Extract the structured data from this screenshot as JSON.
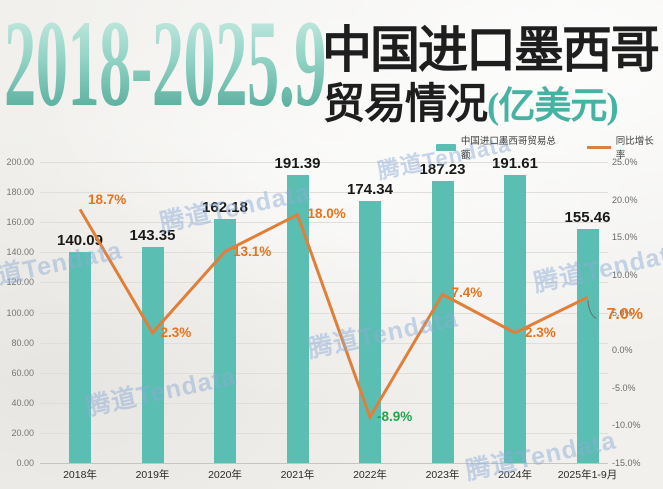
{
  "header": {
    "year_range": "2018-2025.9",
    "title_main": "中国进口墨西哥",
    "title_sub": "贸易情况",
    "title_unit": "(亿美元)"
  },
  "watermark": {
    "text": "腾道Tendata"
  },
  "colors": {
    "bar": "#5abeb2",
    "line": "#e07f39",
    "pct_label": "#e8731c",
    "pct_label_negative": "#1ea750",
    "accent_teal": "#45b3a2",
    "title_teal_dark": "#49a392",
    "watermark": "#8dacd6"
  },
  "chart_data": {
    "type": "bar+line",
    "title": "2018-2025.9 中国进口墨西哥贸易情况(亿美元)",
    "categories": [
      "2018年",
      "2019年",
      "2020年",
      "2021年",
      "2022年",
      "2023年",
      "2024年",
      "2025年1-9月"
    ],
    "series": [
      {
        "name": "中国进口墨西哥贸易总额",
        "type": "bar",
        "unit": "亿美元",
        "values": [
          140.09,
          143.35,
          162.18,
          191.39,
          174.34,
          187.23,
          191.61,
          155.46
        ],
        "labels": [
          "140.09",
          "143.35",
          "162.18",
          "191.39",
          "174.34",
          "187.23",
          "191.61",
          "155.46"
        ]
      },
      {
        "name": "同比增长率",
        "type": "line",
        "unit": "%",
        "values": [
          18.7,
          2.3,
          13.1,
          18.0,
          -8.9,
          7.4,
          2.3,
          7.0
        ],
        "labels": [
          "18.7%",
          "2.3%",
          "13.1%",
          "18.0%",
          "-8.9%",
          "7.4%",
          "2.3%",
          "7.0%"
        ]
      }
    ],
    "y_left": {
      "min": 0,
      "max": 200,
      "step": 20,
      "tick_labels": [
        "200.00",
        "180.00",
        "160.00",
        "140.00",
        "120.00",
        "100.00",
        "80.00",
        "60.00",
        "40.00",
        "20.00",
        "0.00"
      ]
    },
    "y_right": {
      "min": -15,
      "max": 25,
      "step": 5,
      "tick_labels": [
        "25.0%",
        "20.0%",
        "15.0%",
        "10.0%",
        "5.0%",
        "0.0%",
        "-5.0%",
        "-10.0%",
        "-15.0%"
      ]
    },
    "grid": true,
    "legend_position": "top-right"
  }
}
